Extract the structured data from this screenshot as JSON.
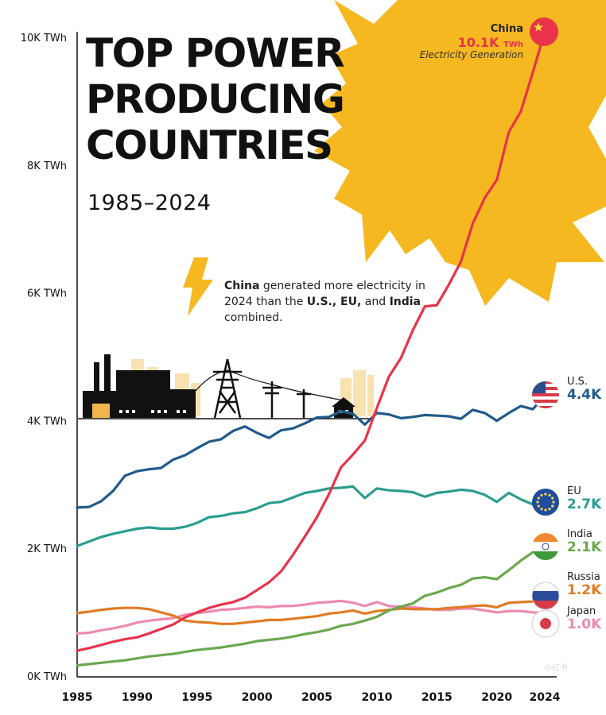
{
  "header": {
    "title": "TOP POWER\nPRODUCING\nCOUNTRIES",
    "subtitle": "1985–2024"
  },
  "annotation": {
    "parts": [
      {
        "text": "China",
        "bold": true
      },
      {
        "text": " generated more electricity in 2024 than the ",
        "bold": false
      },
      {
        "text": "U.S., EU,",
        "bold": true
      },
      {
        "text": " and ",
        "bold": false
      },
      {
        "text": "India",
        "bold": true
      },
      {
        "text": " combined.",
        "bold": false
      }
    ]
  },
  "china_callout": {
    "name": "China",
    "value": "10.1K",
    "unit": "TWh",
    "metric": "Electricity Generation"
  },
  "labels": {
    "us": {
      "name": "U.S.",
      "value": "4.4K"
    },
    "eu": {
      "name": "EU",
      "value": "2.7K"
    },
    "india": {
      "name": "India",
      "value": "2.1K"
    },
    "russia": {
      "name": "Russia",
      "value": "1.2K"
    },
    "japan": {
      "name": "Japan",
      "value": "1.0K"
    }
  },
  "watermark": "小红书",
  "colors": {
    "china": "#e8334a",
    "us": "#1f5a8a",
    "eu": "#2a9d8f",
    "india": "#6aa84f",
    "russia": "#e07c24",
    "japan": "#ec8ab0",
    "sun": "#f5b820",
    "skyline": "#f8e2b0",
    "axis": "#111111"
  },
  "icons": [
    "lightning-bolt-icon",
    "factory-icon",
    "transmission-tower-icon",
    "power-pole-icon",
    "house-icon",
    "china-flag-icon",
    "us-flag-icon",
    "eu-flag-icon",
    "india-flag-icon",
    "russia-flag-icon",
    "japan-flag-icon",
    "sun-icon"
  ],
  "chart_data": {
    "type": "line",
    "xlim": [
      1985,
      2024
    ],
    "ylim": [
      0,
      10000
    ],
    "yunit": "TWh",
    "x_ticks": [
      1985,
      1990,
      1995,
      2000,
      2005,
      2010,
      2015,
      2020,
      2024
    ],
    "y_ticks": [
      0,
      2000,
      4000,
      6000,
      8000,
      10000
    ],
    "y_tick_labels": [
      "0K TWh",
      "2K TWh",
      "4K TWh",
      "6K TWh",
      "8K TWh",
      "10K TWh"
    ],
    "x": [
      1985,
      1986,
      1987,
      1988,
      1989,
      1990,
      1991,
      1992,
      1993,
      1994,
      1995,
      1996,
      1997,
      1998,
      1999,
      2000,
      2001,
      2002,
      2003,
      2004,
      2005,
      2006,
      2007,
      2008,
      2009,
      2010,
      2011,
      2012,
      2013,
      2014,
      2015,
      2016,
      2017,
      2018,
      2019,
      2020,
      2021,
      2022,
      2023,
      2024
    ],
    "series": [
      {
        "name": "China",
        "key": "china",
        "values": [
          410,
          450,
          500,
          550,
          590,
          620,
          680,
          750,
          820,
          930,
          1010,
          1080,
          1130,
          1170,
          1240,
          1360,
          1480,
          1650,
          1910,
          2200,
          2500,
          2860,
          3280,
          3480,
          3700,
          4210,
          4700,
          4990,
          5430,
          5800,
          5820,
          6140,
          6500,
          7100,
          7500,
          7780,
          8530,
          8850,
          9460,
          10100
        ]
      },
      {
        "name": "U.S.",
        "key": "us",
        "values": [
          2650,
          2660,
          2750,
          2910,
          3150,
          3220,
          3250,
          3270,
          3400,
          3470,
          3580,
          3680,
          3720,
          3850,
          3920,
          3820,
          3740,
          3860,
          3890,
          3970,
          4060,
          4070,
          4160,
          4120,
          3950,
          4130,
          4110,
          4050,
          4070,
          4100,
          4090,
          4080,
          4040,
          4180,
          4130,
          4010,
          4130,
          4240,
          4190,
          4400
        ]
      },
      {
        "name": "EU",
        "key": "eu",
        "values": [
          2050,
          2120,
          2190,
          2240,
          2280,
          2320,
          2340,
          2320,
          2320,
          2350,
          2410,
          2500,
          2520,
          2560,
          2580,
          2640,
          2720,
          2740,
          2810,
          2880,
          2910,
          2950,
          2960,
          2980,
          2800,
          2950,
          2920,
          2910,
          2890,
          2820,
          2880,
          2900,
          2930,
          2910,
          2850,
          2740,
          2880,
          2780,
          2700,
          2700
        ]
      },
      {
        "name": "India",
        "key": "india",
        "values": [
          180,
          200,
          220,
          240,
          260,
          290,
          320,
          340,
          360,
          390,
          420,
          440,
          460,
          490,
          520,
          560,
          580,
          600,
          630,
          670,
          700,
          740,
          800,
          830,
          880,
          940,
          1040,
          1100,
          1150,
          1270,
          1320,
          1390,
          1440,
          1540,
          1560,
          1530,
          1670,
          1820,
          1950,
          2100
        ]
      },
      {
        "name": "Russia",
        "key": "russia",
        "values": [
          1000,
          1020,
          1050,
          1070,
          1080,
          1080,
          1060,
          1010,
          960,
          880,
          860,
          850,
          830,
          830,
          850,
          870,
          890,
          890,
          910,
          930,
          950,
          990,
          1010,
          1040,
          990,
          1030,
          1050,
          1070,
          1060,
          1060,
          1060,
          1080,
          1090,
          1110,
          1120,
          1090,
          1160,
          1170,
          1180,
          1200
        ]
      },
      {
        "name": "Japan",
        "key": "japan",
        "values": [
          680,
          690,
          730,
          760,
          800,
          850,
          880,
          900,
          920,
          970,
          1000,
          1020,
          1050,
          1060,
          1080,
          1100,
          1090,
          1110,
          1110,
          1130,
          1160,
          1170,
          1190,
          1160,
          1110,
          1170,
          1110,
          1100,
          1090,
          1070,
          1050,
          1050,
          1070,
          1070,
          1040,
          1010,
          1030,
          1030,
          1010,
          1000
        ]
      }
    ]
  }
}
